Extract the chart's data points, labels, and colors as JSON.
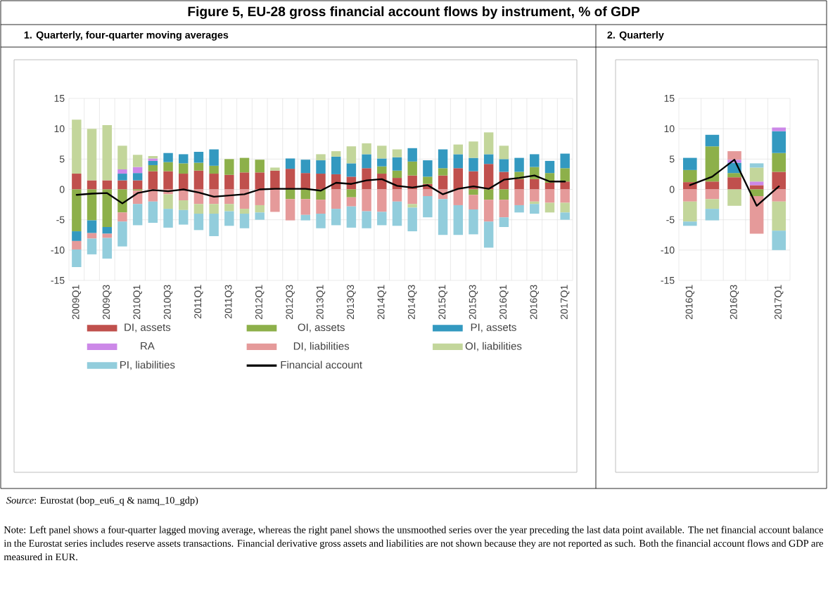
{
  "chart_data": [
    {
      "type": "bar",
      "stacked": true,
      "title": "Figure 5, EU-28 gross financial account flows by instrument, % of GDP",
      "subtitle": "1. Quarterly, four-quarter moving averages",
      "categories": [
        "2009Q1",
        null,
        "2009Q3",
        null,
        "2010Q1",
        null,
        "2010Q3",
        null,
        "2011Q1",
        null,
        "2011Q3",
        null,
        "2012Q1",
        null,
        "2012Q3",
        null,
        "2013Q1",
        null,
        "2013Q3",
        null,
        "2014Q1",
        null,
        "2014Q3",
        null,
        "2015Q1",
        null,
        "2015Q3",
        null,
        "2016Q1",
        null,
        "2016Q3",
        null,
        "2017Q1"
      ],
      "ylim": [
        -15,
        15
      ],
      "yticks": [
        -15,
        -10,
        -5,
        0,
        5,
        10,
        15
      ],
      "grid": true,
      "legend": "bottom",
      "series": [
        {
          "name": "DI, assets",
          "color": "#c0504d",
          "values": [
            2.6,
            1.5,
            1.5,
            1.5,
            1.5,
            3.0,
            3.0,
            2.6,
            3.1,
            2.6,
            2.4,
            2.8,
            2.8,
            3.1,
            3.4,
            2.7,
            2.6,
            2.5,
            2.1,
            3.5,
            2.6,
            1.9,
            2.3,
            0.9,
            2.3,
            3.5,
            3.0,
            4.2,
            2.9,
            1.7,
            1.7,
            1.1,
            1.3
          ]
        },
        {
          "name": "OI, assets",
          "color": "#8db04a",
          "values": [
            -6.9,
            -5.1,
            -6.2,
            -3.8,
            -0.2,
            1.0,
            1.5,
            1.7,
            1.3,
            1.3,
            2.6,
            2.4,
            2.1,
            null,
            -1.6,
            -1.6,
            -1.7,
            null,
            -1.3,
            null,
            1.2,
            1.2,
            2.3,
            1.2,
            1.2,
            null,
            -0.9,
            -1.7,
            -1.7,
            1.2,
            2.0,
            1.6,
            2.2
          ]
        },
        {
          "name": "PI, assets",
          "color": "#3399c0",
          "values": [
            -1.6,
            -2.1,
            -1.1,
            1.1,
            1.2,
            0.7,
            1.5,
            1.5,
            1.8,
            2.7,
            null,
            null,
            null,
            null,
            1.7,
            2.2,
            2.2,
            2.9,
            2.2,
            2.3,
            1.3,
            2.2,
            2.2,
            2.7,
            3.1,
            2.3,
            2.2,
            1.6,
            2.1,
            2.3,
            2.1,
            2.0,
            2.4
          ]
        },
        {
          "name": "RA",
          "color": "#cc88e8",
          "values": [
            null,
            null,
            null,
            0.7,
            1.0,
            0.4,
            null,
            null,
            null,
            null,
            null,
            null,
            null,
            null,
            null,
            null,
            null,
            null,
            null,
            null,
            null,
            null,
            null,
            null,
            null,
            null,
            null,
            null,
            null,
            null,
            null,
            null,
            null
          ]
        },
        {
          "name": "DI, liabilities",
          "color": "#e59a9a",
          "values": [
            -1.4,
            -0.9,
            -0.7,
            -1.5,
            -2.2,
            -2.0,
            -0.8,
            -1.8,
            -2.4,
            -2.4,
            -2.4,
            -3.2,
            -2.6,
            -3.7,
            -3.5,
            -2.6,
            -2.3,
            -3.2,
            -1.5,
            -3.6,
            -3.7,
            -2.0,
            -2.4,
            -1.1,
            -1.6,
            -2.6,
            -2.4,
            -3.6,
            -2.9,
            -2.6,
            -2.0,
            -2.2,
            -2.2
          ]
        },
        {
          "name": "OI, liabilities",
          "color": "#c3d69b",
          "values": [
            8.9,
            8.5,
            9.1,
            3.9,
            2.0,
            0.4,
            -2.4,
            -1.6,
            -1.6,
            -1.6,
            -1.2,
            -0.8,
            -1.2,
            0.5,
            null,
            null,
            1.0,
            0.9,
            2.8,
            1.8,
            2.1,
            1.3,
            -0.6,
            null,
            null,
            1.6,
            2.7,
            3.6,
            2.2,
            null,
            -0.4,
            -1.6,
            -1.6
          ]
        },
        {
          "name": "PI, liabilities",
          "color": "#92cddc",
          "values": [
            -2.9,
            -2.6,
            -3.4,
            -4.1,
            -3.5,
            -3.5,
            -3.1,
            -2.4,
            -2.7,
            -3.7,
            -2.4,
            -2.4,
            -1.2,
            null,
            null,
            -0.9,
            -2.4,
            -2.7,
            -3.5,
            -2.8,
            -2.2,
            -4.0,
            -3.9,
            -3.5,
            -5.9,
            -4.9,
            -4.1,
            -4.3,
            -1.6,
            -1.2,
            -1.6,
            null,
            -1.2
          ]
        },
        {
          "name": "Financial account",
          "type": "line",
          "color": "#000000",
          "values": [
            -0.9,
            -0.7,
            -0.6,
            -2.3,
            -0.6,
            -0.1,
            -0.3,
            0.0,
            -0.5,
            -1.2,
            -1.0,
            -0.8,
            0.0,
            0.1,
            0.1,
            0.1,
            -0.2,
            1.1,
            0.9,
            1.5,
            1.7,
            0.6,
            0.3,
            0.7,
            -0.8,
            0.1,
            0.5,
            0.1,
            1.6,
            1.9,
            2.3,
            1.3,
            1.3
          ]
        }
      ],
      "annotations": [
        "*Source*: Eurostat (bop_eu6_q & namq_10_gdp)",
        "Note: Left panel shows a four-quarter lagged moving average, whereas the right panel shows the unsmoothed series over the year preceding the last data point available. The net financial account balance in the Eurostat series includes reserve assets transactions. Financial derivative gross assets and liabilities are not shown because they are not reported as such. Both the financial account flows and GDP are measured in EUR."
      ]
    },
    {
      "type": "bar",
      "stacked": true,
      "subtitle": "2. Quarterly",
      "categories": [
        "2016Q1",
        null,
        "2016Q3",
        null,
        "2017Q1"
      ],
      "ylim": [
        -15,
        15
      ],
      "yticks": [
        -15,
        -10,
        -5,
        0,
        5,
        10,
        15
      ],
      "grid": true,
      "series": [
        {
          "color": "#c0504d",
          "values": [
            1.2,
            1.3,
            2.0,
            0.7,
            2.9
          ]
        },
        {
          "color": "#8db04a",
          "values": [
            2.0,
            5.8,
            0.7,
            -1.1,
            3.1
          ]
        },
        {
          "color": "#3399c0",
          "values": [
            2.0,
            1.9,
            1.7,
            null,
            3.6
          ]
        },
        {
          "color": "#cc88e8",
          "values": [
            null,
            null,
            0.5,
            0.6,
            0.6
          ]
        },
        {
          "color": "#e59a9a",
          "values": [
            -2.0,
            -1.6,
            1.4,
            -6.2,
            -2.0
          ]
        },
        {
          "color": "#c3d69b",
          "values": [
            -3.3,
            -1.6,
            -2.7,
            2.3,
            -4.8
          ]
        },
        {
          "color": "#92cddc",
          "values": [
            -0.7,
            -1.9,
            null,
            0.7,
            -3.2
          ]
        },
        {
          "type": "line",
          "color": "#000000",
          "values": [
            0.7,
            2.1,
            4.9,
            -2.7,
            0.5
          ]
        }
      ]
    }
  ]
}
